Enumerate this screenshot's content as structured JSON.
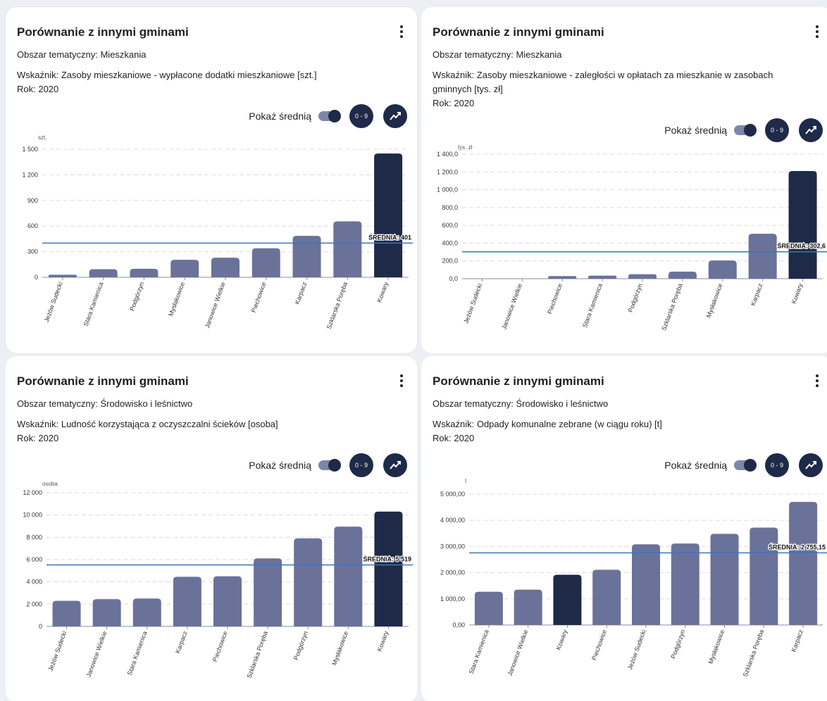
{
  "ui": {
    "show_average_label": "Pokaż średnią",
    "scale_button_label": "0 - 9",
    "colors": {
      "bar": "#6b7299",
      "bar_highlight": "#1e2a48",
      "avg_line": "#3b74c4",
      "grid": "#d8dbe2",
      "card_bg": "#ffffff"
    },
    "icons": {
      "menu": "more-vertical-icon",
      "trend": "trend-line-icon",
      "toggle": "toggle-switch"
    }
  },
  "cards": [
    {
      "title": "Porównanie z innymi gminami",
      "topic": "Obszar tematyczny: Mieszkania",
      "indicator": "Wskaźnik: Zasoby mieszkaniowe - wypłacone dodatki mieszkaniowe [szt.]",
      "year": "Rok: 2020"
    },
    {
      "title": "Porównanie z innymi gminami",
      "topic": "Obszar tematyczny: Mieszkania",
      "indicator": "Wskaźnik: Zasoby mieszkaniowe - zaległości w opłatach za mieszkanie w zasobach gminnych [tys. zł]",
      "year": "Rok: 2020"
    },
    {
      "title": "Porównanie z innymi gminami",
      "topic": "Obszar tematyczny: Środowisko i leśnictwo",
      "indicator": "Wskaźnik: Ludność korzystająca z oczyszczalni ścieków [osoba]",
      "year": "Rok: 2020"
    },
    {
      "title": "Porównanie z innymi gminami",
      "topic": "Obszar tematyczny: Środowisko i leśnictwo",
      "indicator": "Wskaźnik: Odpady komunalne zebrane (w ciągu roku) [t]",
      "year": "Rok: 2020"
    }
  ],
  "chart_data": [
    {
      "type": "bar",
      "title": "",
      "ylabel": "szt.",
      "ylim": [
        0,
        1500
      ],
      "ytick_values": [
        0,
        300,
        600,
        900,
        1200,
        1500
      ],
      "ytick_labels": [
        "0",
        "300",
        "600",
        "900",
        "1 200",
        "1 500"
      ],
      "grid": true,
      "categories": [
        "Jeżów Sudecki",
        "Stara Kamienica",
        "Podgórzyn",
        "Mysłakowice",
        "Janowice Wielkie",
        "Piechowice",
        "Karpacz",
        "Szklarska Poręba",
        "Kowary"
      ],
      "values": [
        30,
        95,
        100,
        205,
        230,
        340,
        485,
        655,
        1450
      ],
      "highlight": "Kowary",
      "average": 401,
      "average_label": "ŚREDNIA: 401"
    },
    {
      "type": "bar",
      "title": "",
      "ylabel": "tys. zł",
      "ylim": [
        0,
        1400
      ],
      "ytick_values": [
        0,
        200,
        400,
        600,
        800,
        1000,
        1200,
        1400
      ],
      "ytick_labels": [
        "0,0",
        "200,0",
        "400,0",
        "600,0",
        "800,0",
        "1 000,0",
        "1 200,0",
        "1 400,0"
      ],
      "grid": true,
      "categories": [
        "Jeżów Sudecki",
        "Janowice Wielkie",
        "Piechowice",
        "Stara Kamienica",
        "Podgórzyn",
        "Szklarska Poręba",
        "Mysłakowice",
        "Karpacz",
        "Kowary"
      ],
      "values": [
        0,
        0,
        30,
        35,
        50,
        80,
        205,
        505,
        1210
      ],
      "highlight": "Kowary",
      "average": 302.6,
      "average_label": "ŚREDNIA: 302,6"
    },
    {
      "type": "bar",
      "title": "",
      "ylabel": "osoba",
      "ylim": [
        0,
        12000
      ],
      "ytick_values": [
        0,
        2000,
        4000,
        6000,
        8000,
        10000,
        12000
      ],
      "ytick_labels": [
        "0",
        "2 000",
        "4 000",
        "6 000",
        "8 000",
        "10 000",
        "12 000"
      ],
      "grid": true,
      "categories": [
        "Jeżów Sudecki",
        "Janowice Wielkie",
        "Stara Kamienica",
        "Karpacz",
        "Piechowice",
        "Szklarska Poręba",
        "Podgórzyn",
        "Mysłakowice",
        "Kowary"
      ],
      "values": [
        2300,
        2450,
        2500,
        4450,
        4500,
        6100,
        7900,
        8950,
        10300
      ],
      "highlight": "Kowary",
      "average": 5519,
      "average_label": "ŚREDNIA: 5 519"
    },
    {
      "type": "bar",
      "title": "",
      "ylabel": "t",
      "ylim": [
        0,
        5000
      ],
      "ytick_values": [
        0,
        1000,
        2000,
        3000,
        4000,
        5000
      ],
      "ytick_labels": [
        "0,00",
        "1 000,00",
        "2 000,00",
        "3 000,00",
        "4 000,00",
        "5 000,00"
      ],
      "grid": true,
      "categories": [
        "Stara Kamienica",
        "Janowice Wielkie",
        "Kowary",
        "Piechowice",
        "Jeżów Sudecki",
        "Podgórzyn",
        "Mysłakowice",
        "Szklarska Poręba",
        "Karpacz"
      ],
      "values": [
        1270,
        1350,
        1920,
        2110,
        3080,
        3110,
        3480,
        3720,
        4700
      ],
      "highlight": "Kowary",
      "average": 2755.15,
      "average_label": "ŚREDNIA: 2 755,15"
    }
  ]
}
